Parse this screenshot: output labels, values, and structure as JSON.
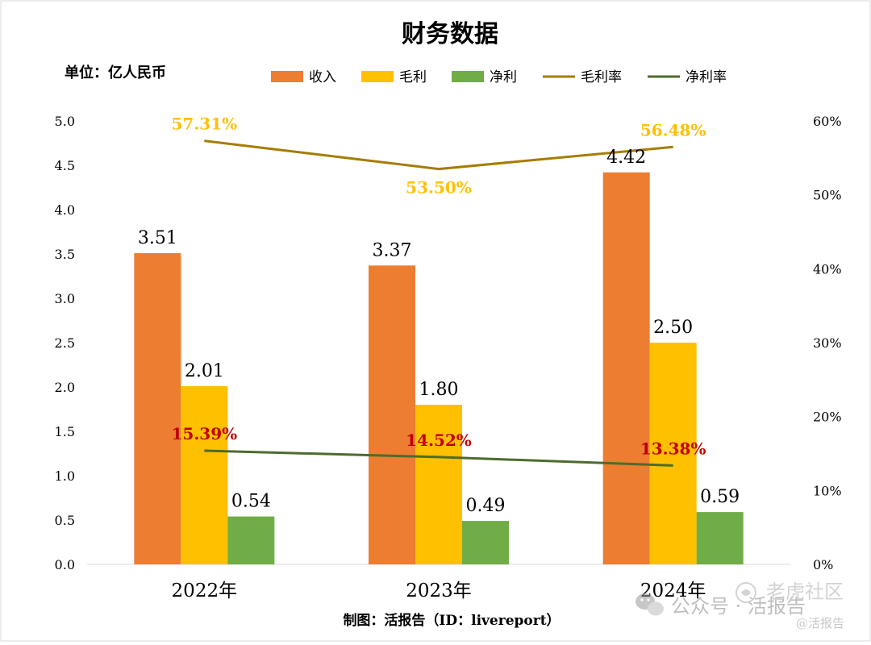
{
  "chart_data": {
    "type": "bar",
    "title": "财务数据",
    "unit_label": "单位：亿人民币",
    "source_label": "制图：活报告（ID：livereport）",
    "categories": [
      "2022年",
      "2023年",
      "2024年"
    ],
    "series": [
      {
        "name": "收入",
        "type": "bar",
        "axis": "left",
        "color": "#ED7D31",
        "values": [
          3.51,
          3.37,
          4.42
        ],
        "labels": [
          "3.51",
          "3.37",
          "4.42"
        ]
      },
      {
        "name": "毛利",
        "type": "bar",
        "axis": "left",
        "color": "#FFC000",
        "values": [
          2.01,
          1.8,
          2.5
        ],
        "labels": [
          "2.01",
          "1.80",
          "2.50"
        ]
      },
      {
        "name": "净利",
        "type": "bar",
        "axis": "left",
        "color": "#70AD47",
        "values": [
          0.54,
          0.49,
          0.59
        ],
        "labels": [
          "0.54",
          "0.49",
          "0.59"
        ]
      },
      {
        "name": "毛利率",
        "type": "line",
        "axis": "right",
        "color": "#A67C00",
        "label_color": "#FFC000",
        "values": [
          57.31,
          53.5,
          56.48
        ],
        "labels": [
          "57.31%",
          "53.50%",
          "56.48%"
        ],
        "label_positions": [
          "above",
          "below",
          "above"
        ]
      },
      {
        "name": "净利率",
        "type": "line",
        "axis": "right",
        "color": "#4E6B2E",
        "label_color": "#C00000",
        "values": [
          15.39,
          14.52,
          13.38
        ],
        "labels": [
          "15.39%",
          "14.52%",
          "13.38%"
        ],
        "label_positions": [
          "above",
          "above",
          "above"
        ]
      }
    ],
    "y_left": {
      "min": 0,
      "max": 5,
      "step": 0.5,
      "ticks": [
        "0.0",
        "0.5",
        "1.0",
        "1.5",
        "2.0",
        "2.5",
        "3.0",
        "3.5",
        "4.0",
        "4.5",
        "5.0"
      ]
    },
    "y_right": {
      "min": 0,
      "max": 60,
      "step": 10,
      "ticks": [
        "0%",
        "10%",
        "20%",
        "30%",
        "40%",
        "50%",
        "60%"
      ]
    },
    "legend_position": "top",
    "grid": false
  },
  "watermark": {
    "channel_text": "公众号 · 活报告",
    "brand_text": "老虎社区",
    "handle_text": "@活报告"
  }
}
